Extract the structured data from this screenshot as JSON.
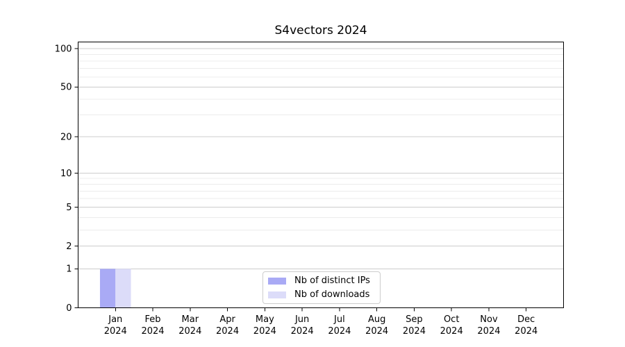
{
  "chart_data": {
    "type": "bar",
    "title": "S4vectors 2024",
    "categories": [
      "Jan",
      "Feb",
      "Mar",
      "Apr",
      "May",
      "Jun",
      "Jul",
      "Aug",
      "Sep",
      "Oct",
      "Nov",
      "Dec"
    ],
    "category_year_line": "2024",
    "series": [
      {
        "name": "Nb of distinct IPs",
        "color": "#a9aaf5",
        "values": [
          1,
          0,
          0,
          0,
          0,
          0,
          0,
          0,
          0,
          0,
          0,
          0
        ]
      },
      {
        "name": "Nb of downloads",
        "color": "#dcdcf9",
        "values": [
          1,
          0,
          0,
          0,
          0,
          0,
          0,
          0,
          0,
          0,
          0,
          0
        ]
      }
    ],
    "xlabel": "",
    "ylabel": "",
    "yscale": "log1p",
    "ylim": [
      0,
      113
    ],
    "y_major_ticks": [
      0,
      1,
      2,
      5,
      10,
      20,
      50,
      100
    ],
    "y_minor_gridlines": [
      3,
      4,
      6,
      7,
      8,
      9,
      30,
      40,
      60,
      70,
      80,
      90
    ],
    "grid": "horizontal",
    "legend_position": "lower center"
  },
  "legend": {
    "entries": [
      {
        "label": "Nb of distinct IPs",
        "color": "#a9aaf5"
      },
      {
        "label": "Nb of downloads",
        "color": "#dcdcf9"
      }
    ]
  },
  "colors": {
    "background": "#ffffff",
    "axis": "#000000",
    "text": "#000000",
    "major_grid": "#cccccc",
    "minor_grid": "#ececec",
    "legend_border": "#cccccc"
  }
}
